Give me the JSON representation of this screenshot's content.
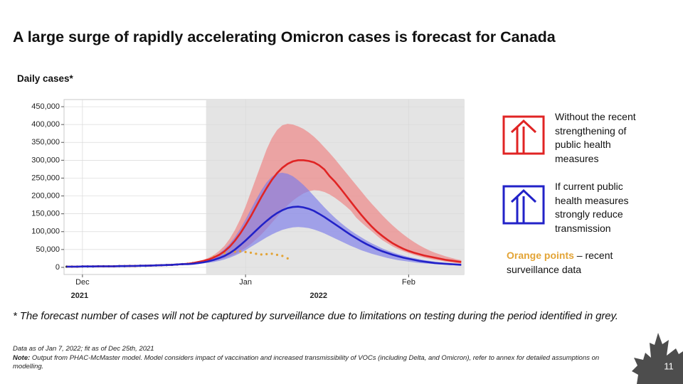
{
  "title": "A large surge of rapidly accelerating Omicron cases is forecast for Canada",
  "chart_data": {
    "type": "line",
    "y_label": "Daily cases*",
    "categories": [
      null,
      null,
      null,
      "Dec",
      null,
      null,
      null,
      null,
      null,
      null,
      null,
      null,
      null,
      null,
      null,
      null,
      null,
      null,
      null,
      null,
      null,
      null,
      null,
      null,
      null,
      null,
      null,
      null,
      null,
      null,
      null,
      null,
      null,
      null,
      "Jan",
      null,
      null,
      null,
      null,
      null,
      null,
      null,
      null,
      null,
      null,
      null,
      null,
      null,
      null,
      null,
      null,
      null,
      null,
      null,
      null,
      null,
      null,
      null,
      null,
      null,
      null,
      null,
      null,
      null,
      null,
      "Feb",
      null,
      null,
      null,
      null,
      null,
      null,
      null,
      null,
      null,
      null
    ],
    "years": [
      "2021",
      "2022"
    ],
    "ylim": [
      -20000,
      470000
    ],
    "yticks": [
      0,
      {
        "value": 50000,
        "label": "50,000"
      },
      {
        "value": 100000,
        "label": "100,000"
      },
      {
        "value": 150000,
        "label": "150,000"
      },
      {
        "value": 200000,
        "label": "200,000"
      },
      {
        "value": 250000,
        "label": "250,000"
      },
      {
        "value": 300000,
        "label": "300,000"
      },
      {
        "value": 350000,
        "label": "350,000"
      },
      {
        "value": 400000,
        "label": "400,000"
      },
      {
        "value": 450000,
        "label": "450,000"
      }
    ],
    "grid": true,
    "series": [
      {
        "name": "Without the recent strengthening of public health measures",
        "color": "#e02424",
        "band_color": "#ee8080",
        "values": [
          2000,
          2000,
          2000,
          2500,
          2500,
          2500,
          3000,
          3000,
          3000,
          3000,
          3500,
          3500,
          4000,
          4000,
          4500,
          4500,
          5000,
          5500,
          6000,
          6500,
          7000,
          8000,
          9000,
          10000,
          12000,
          15000,
          18000,
          22000,
          28000,
          35000,
          45000,
          58000,
          75000,
          95000,
          118000,
          143000,
          170000,
          197000,
          222000,
          245000,
          264000,
          279000,
          290000,
          297000,
          300000,
          300000,
          298000,
          294000,
          286000,
          274000,
          255000,
          240000,
          222000,
          203000,
          184000,
          165000,
          147000,
          130000,
          114000,
          100000,
          88000,
          77000,
          67000,
          59000,
          52000,
          46000,
          41000,
          37000,
          33000,
          30000,
          27000,
          24000,
          21000,
          19000,
          17000,
          15000
        ],
        "upper": [
          2000,
          2000,
          2000,
          2500,
          2500,
          2500,
          3000,
          3000,
          3000,
          3000,
          3500,
          3500,
          4000,
          4000,
          4500,
          4500,
          5000,
          5500,
          6000,
          6500,
          7000,
          8000,
          9500,
          11000,
          14000,
          17000,
          21000,
          27000,
          35000,
          46000,
          60000,
          80000,
          105000,
          135000,
          170000,
          210000,
          250000,
          290000,
          330000,
          362000,
          385000,
          398000,
          402000,
          400000,
          395000,
          388000,
          378000,
          366000,
          352000,
          336000,
          320000,
          303000,
          285000,
          267000,
          249000,
          231000,
          213000,
          195000,
          178000,
          162000,
          146000,
          131000,
          117000,
          104000,
          92000,
          81000,
          71000,
          62000,
          54000,
          47000,
          41000,
          36000,
          31000,
          27000,
          23000,
          20000
        ],
        "lower": [
          2000,
          2000,
          2000,
          2500,
          2500,
          2500,
          3000,
          3000,
          3000,
          3000,
          3500,
          3500,
          4000,
          4000,
          4500,
          4500,
          5000,
          5500,
          6000,
          6500,
          7000,
          8000,
          8500,
          8500,
          9000,
          11000,
          13000,
          15000,
          18000,
          22000,
          26000,
          31000,
          37000,
          45000,
          54000,
          65000,
          78000,
          92000,
          108000,
          125000,
          142000,
          159000,
          174000,
          187000,
          198000,
          207000,
          213000,
          216000,
          215000,
          211000,
          204000,
          195000,
          184000,
          172000,
          159000,
          140000,
          126000,
          113000,
          101000,
          88000,
          76000,
          67000,
          58000,
          51000,
          45000,
          40000,
          35000,
          31000,
          27000,
          24000,
          21000,
          19000,
          16000,
          14000,
          12000,
          10000
        ]
      },
      {
        "name": "If current public health measures strongly reduce transmission",
        "color": "#2222c8",
        "band_color": "#7b7bea",
        "values": [
          2000,
          2000,
          2000,
          2500,
          2500,
          2500,
          3000,
          3000,
          3000,
          3000,
          3500,
          3500,
          4000,
          4000,
          4500,
          4500,
          5000,
          5500,
          6000,
          6500,
          7000,
          8000,
          9000,
          9000,
          10000,
          12000,
          14000,
          17000,
          21000,
          26000,
          32000,
          40000,
          50000,
          62000,
          75000,
          89000,
          103000,
          117000,
          130000,
          142000,
          152000,
          160000,
          166000,
          169000,
          170000,
          168000,
          164000,
          158000,
          150000,
          141000,
          131000,
          121000,
          111000,
          101000,
          91000,
          82000,
          73000,
          65000,
          58000,
          51000,
          45000,
          40000,
          35000,
          31000,
          27000,
          24000,
          21000,
          18000,
          16000,
          14000,
          12000,
          11000,
          10000,
          9000,
          8000,
          7000
        ],
        "upper": [
          2000,
          2000,
          2000,
          2500,
          2500,
          2500,
          3000,
          3000,
          3000,
          3000,
          3500,
          3500,
          4000,
          4000,
          4500,
          4500,
          5000,
          5500,
          6000,
          6500,
          7000,
          8000,
          9500,
          10000,
          12000,
          14000,
          18000,
          23000,
          30000,
          39000,
          51000,
          66000,
          85000,
          108000,
          134000,
          162000,
          190000,
          216000,
          238000,
          254000,
          263000,
          265000,
          262000,
          255000,
          244000,
          231000,
          216000,
          200000,
          184000,
          168000,
          153000,
          139000,
          126000,
          114000,
          103000,
          93000,
          84000,
          75000,
          67000,
          60000,
          53000,
          47000,
          42000,
          37000,
          33000,
          29000,
          26000,
          23000,
          20000,
          18000,
          16000,
          14000,
          12000,
          11000,
          10000,
          9000
        ],
        "lower": [
          2000,
          2000,
          2000,
          2500,
          2500,
          2500,
          3000,
          3000,
          3000,
          3000,
          3500,
          3500,
          4000,
          4000,
          4500,
          4500,
          5000,
          5500,
          6000,
          6500,
          7000,
          8000,
          8500,
          8500,
          8500,
          9000,
          11000,
          13000,
          15000,
          18000,
          22000,
          27000,
          33000,
          40000,
          48000,
          57000,
          66000,
          75000,
          84000,
          92000,
          99000,
          105000,
          109000,
          112000,
          113000,
          112000,
          110000,
          106000,
          101000,
          95000,
          88000,
          81000,
          74000,
          67000,
          60000,
          54000,
          48000,
          43000,
          38000,
          34000,
          30000,
          26000,
          23000,
          20000,
          18000,
          16000,
          14000,
          12000,
          11000,
          10000,
          9000,
          8000,
          7000,
          6000,
          6000,
          5000
        ]
      }
    ],
    "points": [
      {
        "color": "#222222",
        "values": [
          2000,
          2000,
          2000,
          2500,
          2500,
          2500,
          3000,
          3000,
          3000,
          3000,
          3500,
          3500,
          4000,
          4000,
          4500,
          4500,
          5000,
          5500,
          6000,
          6500,
          7000,
          8000,
          9000,
          10000,
          12000,
          14000,
          17000,
          20000,
          null,
          null,
          null,
          null,
          null,
          null,
          null,
          null,
          null,
          null,
          null,
          null,
          null,
          null,
          null,
          null,
          null,
          null,
          null,
          null,
          null,
          null,
          null,
          null,
          null,
          null,
          null,
          null,
          null,
          null,
          null,
          null,
          null,
          null,
          null,
          null,
          null,
          null,
          null,
          null,
          null,
          null,
          null,
          null,
          null,
          null,
          null,
          null
        ]
      },
      {
        "name": "Orange points",
        "description": "– recent surveillance data",
        "color": "#e3a436",
        "values": [
          null,
          null,
          null,
          null,
          null,
          null,
          null,
          null,
          null,
          null,
          null,
          null,
          null,
          null,
          null,
          null,
          null,
          null,
          null,
          null,
          null,
          null,
          null,
          null,
          null,
          null,
          null,
          null,
          30000,
          35000,
          40000,
          42000,
          44000,
          45000,
          43000,
          41000,
          38000,
          36000,
          37000,
          38000,
          35000,
          32000,
          25000,
          null,
          null,
          null,
          null,
          null,
          null,
          null,
          null,
          null,
          null,
          null,
          null,
          null,
          null,
          null,
          null,
          null,
          null,
          null,
          null,
          null,
          null,
          null,
          null,
          null,
          null,
          null,
          null,
          null,
          null,
          null,
          null,
          null
        ]
      }
    ]
  },
  "footnote": "* The forecast number of cases will not be captured by surveillance due to limitations on testing during the period identified in grey.",
  "footer": {
    "data_note": "Data as of Jan 7, 2022; fit as of Dec 25th, 2021",
    "note_label": "Note:",
    "note_text": "Output from PHAC-McMaster model. Model considers impact of vaccination and increased transmissibility of VOCs (including Delta, and Omicron), refer to annex for detailed assumptions on modelling."
  },
  "page_number": 11
}
